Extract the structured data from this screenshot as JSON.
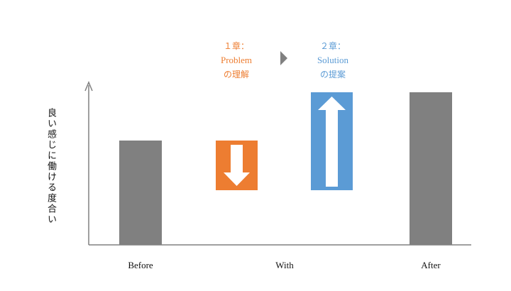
{
  "axis": {
    "y_label": "良い感じに働ける度合い"
  },
  "categories": [
    "Before",
    "With",
    "After"
  ],
  "phases": [
    {
      "line1": "１章：",
      "line2": "Problem",
      "line3": "の理解",
      "color": "#ED7D31",
      "direction": "down"
    },
    {
      "line1": "２章：",
      "line2": "Solution",
      "line3": "の提案",
      "color": "#5B9BD5",
      "direction": "up"
    }
  ],
  "colors": {
    "bar": "#808080",
    "axis": "#808080",
    "orange": "#ED7D31",
    "blue": "#5B9BD5",
    "arrow_fill": "#ffffff"
  },
  "icons": {
    "between_phases": "play-triangle-icon"
  }
}
